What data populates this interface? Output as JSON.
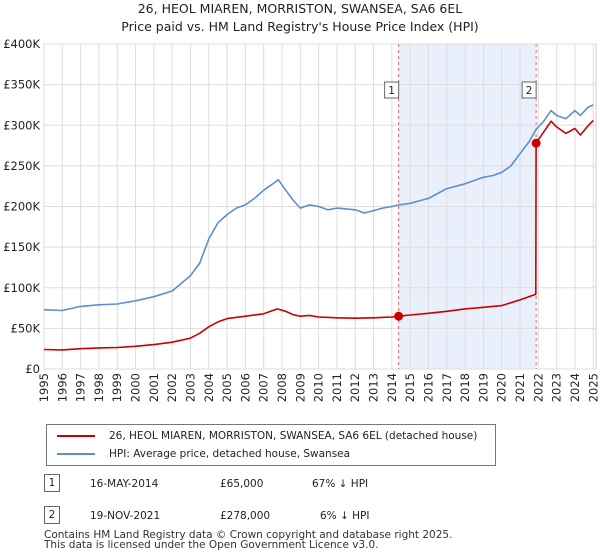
{
  "chart_data": {
    "type": "line",
    "title": "26, HEOL MIAREN, MORRISTON, SWANSEA, SA6 6EL",
    "subtitle": "Price paid vs. HM Land Registry's House Price Index (HPI)",
    "x_tick_labels": [
      "1995",
      "1996",
      "1997",
      "1998",
      "1999",
      "2000",
      "2001",
      "2002",
      "2003",
      "2004",
      "2005",
      "2006",
      "2007",
      "2008",
      "2009",
      "2010",
      "2011",
      "2012",
      "2013",
      "2014",
      "2015",
      "2016",
      "2017",
      "2018",
      "2019",
      "2020",
      "2021",
      "2022",
      "2023",
      "2024",
      "2025"
    ],
    "y_tick_labels": [
      "£0",
      "£50K",
      "£100K",
      "£150K",
      "£200K",
      "£250K",
      "£300K",
      "£350K",
      "£400K"
    ],
    "xlim": [
      1995,
      2025.15
    ],
    "ylim": [
      0,
      400000
    ],
    "grid": true,
    "shaded_region": {
      "from": 2014.37,
      "to": 2021.88
    },
    "series": [
      {
        "name": "26, HEOL MIAREN, MORRISTON, SWANSEA, SA6 6EL (detached house)",
        "color": "#cc0000",
        "points": [
          [
            1995.0,
            24000
          ],
          [
            1996.0,
            23500
          ],
          [
            1997.0,
            25000
          ],
          [
            1998.0,
            26000
          ],
          [
            1999.0,
            26500
          ],
          [
            2000.0,
            28000
          ],
          [
            2001.0,
            30000
          ],
          [
            2002.0,
            33000
          ],
          [
            2003.0,
            38000
          ],
          [
            2003.5,
            44000
          ],
          [
            2004.0,
            52000
          ],
          [
            2004.5,
            58000
          ],
          [
            2005.0,
            62000
          ],
          [
            2006.0,
            65000
          ],
          [
            2007.0,
            68000
          ],
          [
            2007.75,
            74000
          ],
          [
            2008.2,
            71000
          ],
          [
            2008.6,
            67000
          ],
          [
            2009.0,
            65000
          ],
          [
            2009.5,
            66000
          ],
          [
            2010.0,
            64000
          ],
          [
            2011.0,
            63000
          ],
          [
            2012.0,
            62500
          ],
          [
            2013.0,
            63000
          ],
          [
            2014.0,
            64000
          ],
          [
            2014.37,
            65000
          ],
          [
            2015.0,
            66500
          ],
          [
            2016.0,
            68500
          ],
          [
            2017.0,
            71000
          ],
          [
            2018.0,
            74000
          ],
          [
            2019.0,
            76000
          ],
          [
            2020.0,
            78000
          ],
          [
            2021.0,
            85000
          ],
          [
            2021.86,
            92000
          ],
          [
            2021.88,
            278000
          ],
          [
            2022.3,
            292000
          ],
          [
            2022.7,
            305000
          ],
          [
            2023.0,
            298000
          ],
          [
            2023.5,
            290000
          ],
          [
            2024.0,
            296000
          ],
          [
            2024.3,
            288000
          ],
          [
            2024.7,
            299000
          ],
          [
            2025.0,
            306000
          ]
        ]
      },
      {
        "name": "HPI: Average price, detached house, Swansea",
        "color": "#5b8fd0",
        "points": [
          [
            1995.0,
            73000
          ],
          [
            1996.0,
            72000
          ],
          [
            1997.0,
            77000
          ],
          [
            1998.0,
            79000
          ],
          [
            1999.0,
            80000
          ],
          [
            2000.0,
            84000
          ],
          [
            2001.0,
            89000
          ],
          [
            2002.0,
            96000
          ],
          [
            2003.0,
            115000
          ],
          [
            2003.5,
            130000
          ],
          [
            2004.0,
            160000
          ],
          [
            2004.5,
            180000
          ],
          [
            2005.0,
            190000
          ],
          [
            2005.5,
            198000
          ],
          [
            2006.0,
            202000
          ],
          [
            2006.5,
            210000
          ],
          [
            2007.0,
            220000
          ],
          [
            2007.5,
            228000
          ],
          [
            2007.8,
            233000
          ],
          [
            2008.2,
            220000
          ],
          [
            2008.6,
            208000
          ],
          [
            2009.0,
            198000
          ],
          [
            2009.5,
            202000
          ],
          [
            2010.0,
            200000
          ],
          [
            2010.5,
            196000
          ],
          [
            2011.0,
            198000
          ],
          [
            2012.0,
            196000
          ],
          [
            2012.5,
            192000
          ],
          [
            2013.0,
            195000
          ],
          [
            2013.5,
            198000
          ],
          [
            2014.0,
            200000
          ],
          [
            2014.37,
            202000
          ],
          [
            2015.0,
            204000
          ],
          [
            2016.0,
            210000
          ],
          [
            2016.5,
            216000
          ],
          [
            2017.0,
            222000
          ],
          [
            2018.0,
            228000
          ],
          [
            2019.0,
            236000
          ],
          [
            2019.5,
            238000
          ],
          [
            2020.0,
            242000
          ],
          [
            2020.5,
            250000
          ],
          [
            2021.0,
            265000
          ],
          [
            2021.5,
            280000
          ],
          [
            2021.88,
            295000
          ],
          [
            2022.3,
            305000
          ],
          [
            2022.7,
            318000
          ],
          [
            2023.0,
            312000
          ],
          [
            2023.5,
            308000
          ],
          [
            2024.0,
            318000
          ],
          [
            2024.3,
            312000
          ],
          [
            2024.7,
            322000
          ],
          [
            2025.0,
            325000
          ]
        ]
      }
    ],
    "markers": [
      {
        "label": "1",
        "x": 2014.37,
        "y": 65000
      },
      {
        "label": "2",
        "x": 2021.88,
        "y": 278000
      }
    ]
  },
  "legend": {
    "red_label": "26, HEOL MIAREN, MORRISTON, SWANSEA, SA6 6EL (detached house)",
    "blue_label": "HPI: Average price, detached house, Swansea"
  },
  "sales": [
    {
      "id": "1",
      "date": "16-MAY-2014",
      "price": "£65,000",
      "hpi": "67% ↓ HPI"
    },
    {
      "id": "2",
      "date": "19-NOV-2021",
      "price": "£278,000",
      "hpi": "6% ↓ HPI"
    }
  ],
  "footer": {
    "line1": "Contains HM Land Registry data © Crown copyright and database right 2025.",
    "line2": "This data is licensed under the Open Government Licence v3.0."
  }
}
